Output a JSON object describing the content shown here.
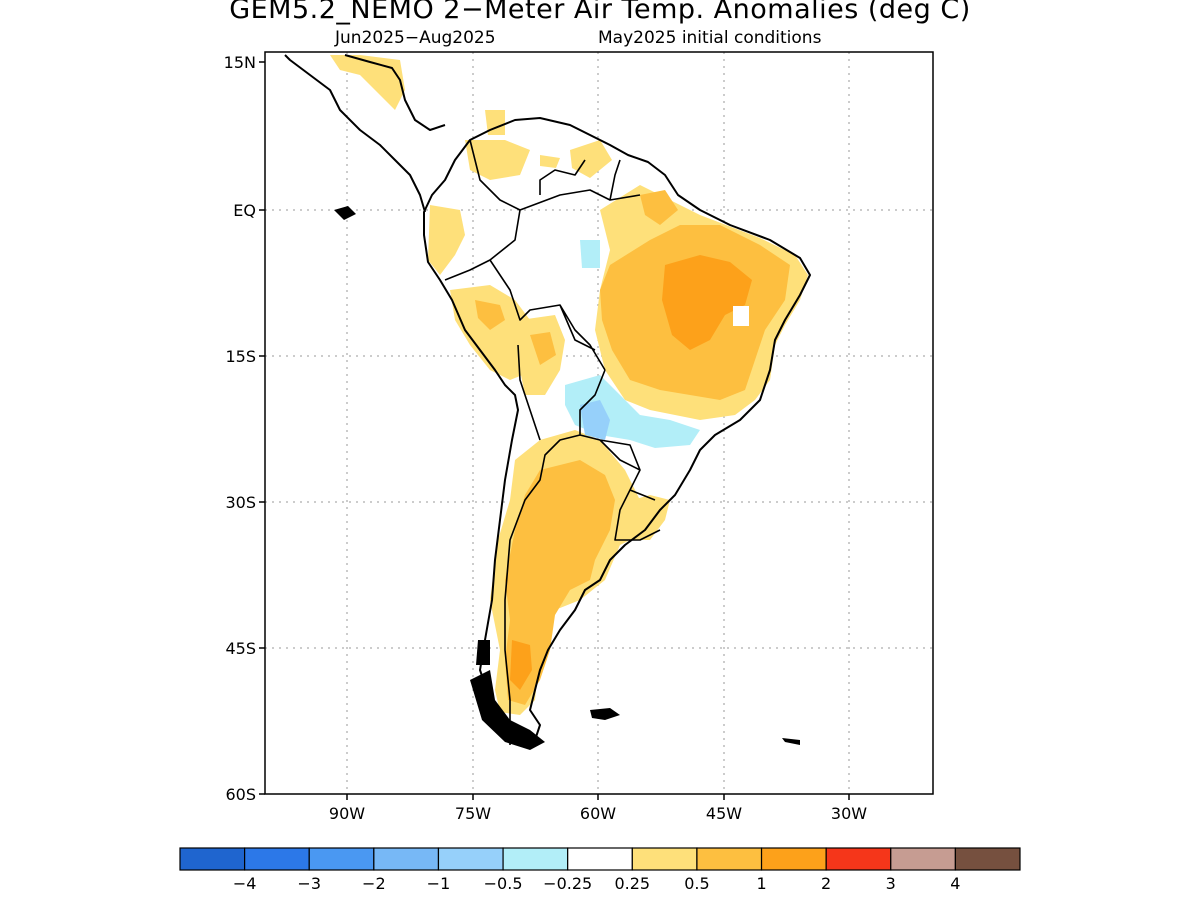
{
  "header": {
    "title": "GEM5.2_NEMO 2−Meter Air Temp. Anomalies (deg C)",
    "period": "Jun2025−Aug2025",
    "init": "May2025 initial conditions"
  },
  "map": {
    "lat_ticks": [
      "15N",
      "EQ",
      "15S",
      "30S",
      "45S",
      "60S"
    ],
    "lon_ticks": [
      "90W",
      "75W",
      "60W",
      "45W",
      "30W"
    ],
    "extent": {
      "lon": [
        -100,
        -20
      ],
      "lat": [
        -60,
        15
      ]
    },
    "grid": "dotted",
    "anomaly_regions": [
      {
        "region": "northeast Brazil",
        "category": "1 to 2"
      },
      {
        "region": "central Brazil",
        "category": "0.5 to 1"
      },
      {
        "region": "Argentina and Patagonia",
        "category": "0.5 to 1"
      },
      {
        "region": "Colombia and Venezuela",
        "category": "0.25 to 0.5"
      },
      {
        "region": "Peru and Ecuador",
        "category": "0.25 to 1"
      },
      {
        "region": "Paraguay and southern Brazil",
        "category": "-1 to -0.25"
      },
      {
        "region": "western Amazon",
        "category": "-0.5 to -0.25"
      }
    ]
  },
  "colorbar": {
    "colors": [
      "#1f65cf",
      "#2c78e8",
      "#4a98f2",
      "#77b8f6",
      "#96d0fa",
      "#b2eef8",
      "#ffffff",
      "#fee07a",
      "#fdbf40",
      "#fda11a",
      "#f5361a",
      "#c69c92",
      "#76503f"
    ],
    "labels": [
      "−4",
      "−3",
      "−2",
      "−1",
      "−0.5",
      "−0.25",
      "0.25",
      "0.5",
      "1",
      "2",
      "3",
      "4"
    ]
  }
}
